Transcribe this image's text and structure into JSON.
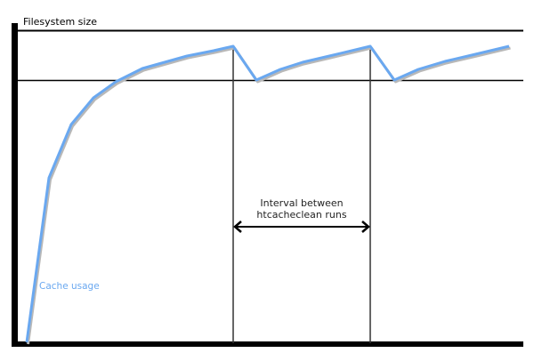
{
  "labels": {
    "y_axis": "Filesystem size",
    "interval_line1": "Interval between",
    "interval_line2": "htcacheclean runs",
    "series": "Cache usage"
  },
  "colors": {
    "series": "#6aa8f0",
    "shadow": "#b8b8b8",
    "axis": "#000000"
  }
}
